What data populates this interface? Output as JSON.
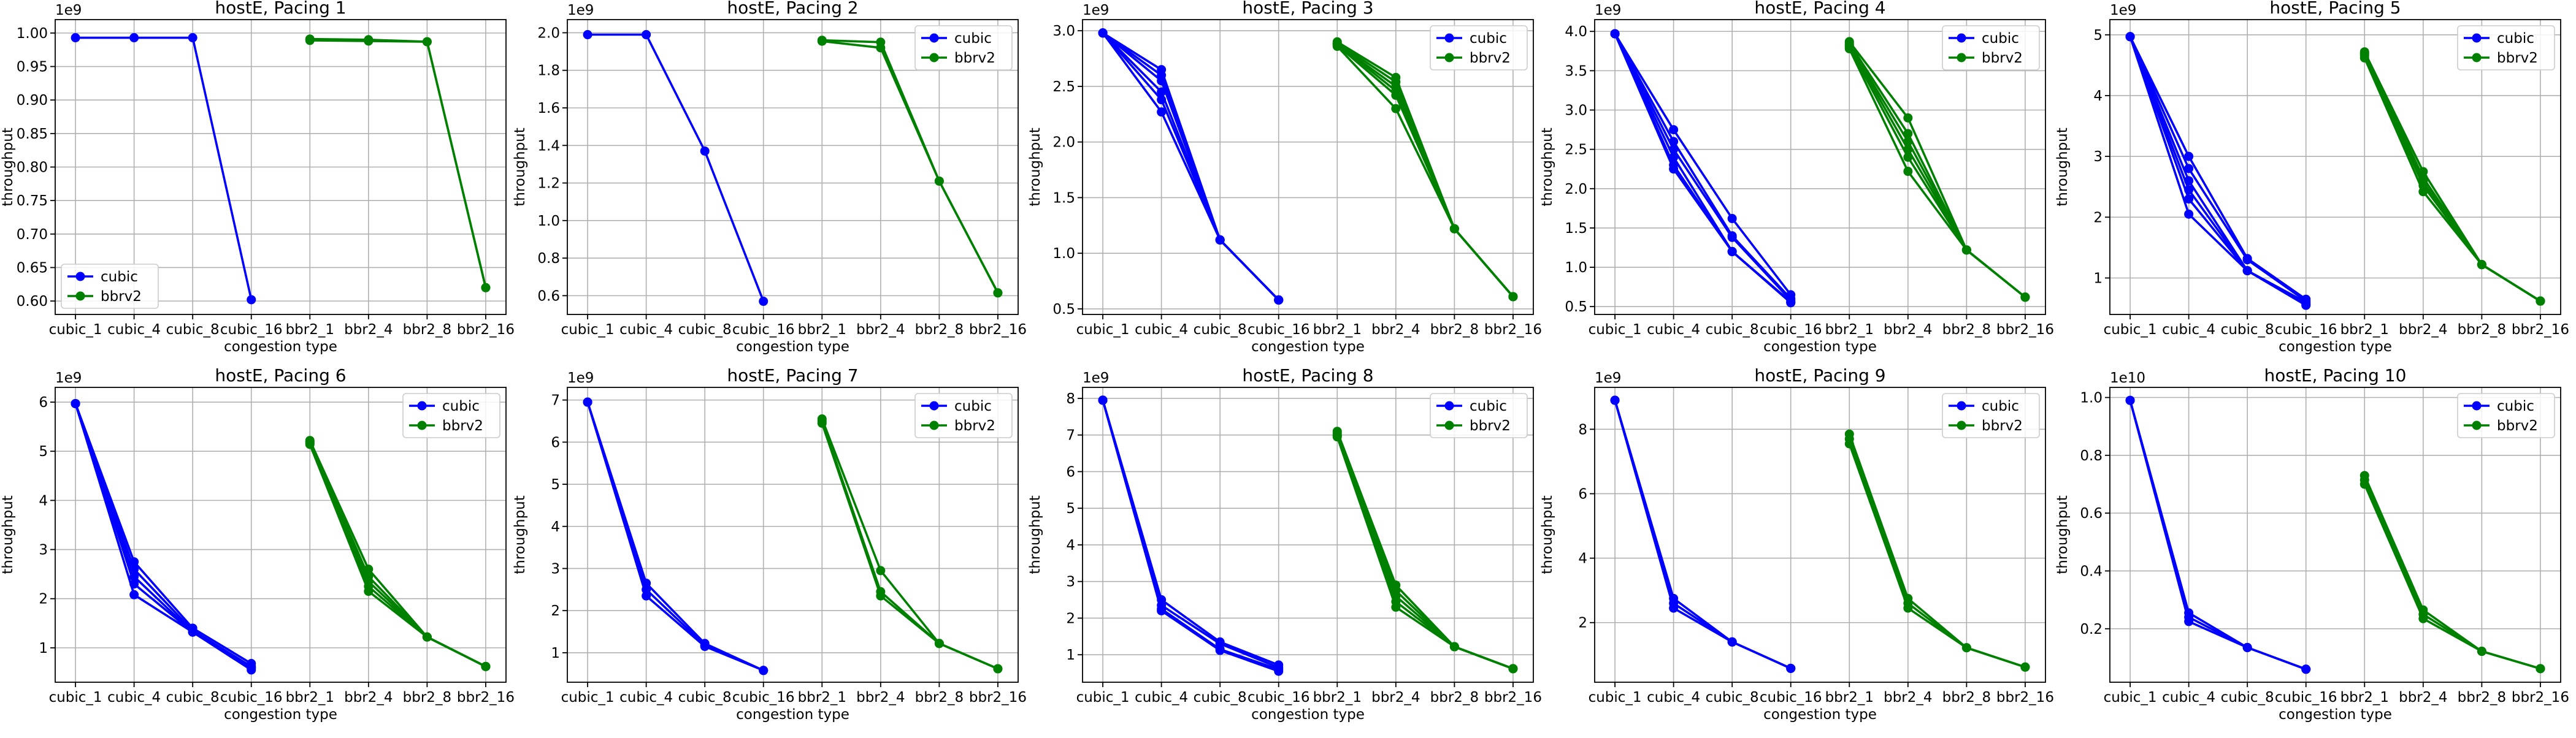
{
  "figure": {
    "axis_labels": {
      "x": "congestion type",
      "y": "throughput"
    }
  },
  "chart_data": [
    {
      "type": "line",
      "title": "hostE, Pacing 1",
      "xlabel": "congestion type",
      "ylabel": "throughput",
      "multiplier_label": "1e9",
      "multiplier": 1000000000,
      "categories": [
        "cubic_1",
        "cubic_4",
        "cubic_8",
        "cubic_16",
        "bbr2_1",
        "bbr2_4",
        "bbr2_8",
        "bbr2_16"
      ],
      "ylim": [
        0.58,
        1.02
      ],
      "yticks": [
        0.6,
        0.65,
        0.7,
        0.75,
        0.8,
        0.85,
        0.9,
        0.95,
        1.0
      ],
      "ytick_labels": [
        "0.60",
        "0.65",
        "0.70",
        "0.75",
        "0.80",
        "0.85",
        "0.90",
        "0.95",
        "1.00"
      ],
      "grid": true,
      "legend_position": "lower-left",
      "series": [
        {
          "name": "cubic",
          "color": "#0000ff",
          "runs": [
            [
              0.993,
              0.993,
              0.993,
              0.602
            ]
          ]
        },
        {
          "name": "bbrv2",
          "color": "#008000",
          "runs": [
            [
              0.991,
              0.99,
              0.987,
              0.62
            ],
            [
              0.989,
              0.988,
              0.987,
              0.62
            ]
          ]
        }
      ]
    },
    {
      "type": "line",
      "title": "hostE, Pacing 2",
      "xlabel": "congestion type",
      "ylabel": "throughput",
      "multiplier_label": "1e9",
      "multiplier": 1000000000,
      "categories": [
        "cubic_1",
        "cubic_4",
        "cubic_8",
        "cubic_16",
        "bbr2_1",
        "bbr2_4",
        "bbr2_8",
        "bbr2_16"
      ],
      "ylim": [
        0.5,
        2.07
      ],
      "yticks": [
        0.6,
        0.8,
        1.0,
        1.2,
        1.4,
        1.6,
        1.8,
        2.0
      ],
      "ytick_labels": [
        "0.6",
        "0.8",
        "1.0",
        "1.2",
        "1.4",
        "1.6",
        "1.8",
        "2.0"
      ],
      "grid": true,
      "legend_position": "upper-right",
      "series": [
        {
          "name": "cubic",
          "color": "#0000ff",
          "runs": [
            [
              1.99,
              1.99,
              1.37,
              0.57
            ]
          ]
        },
        {
          "name": "bbrv2",
          "color": "#008000",
          "runs": [
            [
              1.96,
              1.95,
              1.21,
              0.615
            ],
            [
              1.955,
              1.92,
              1.21,
              0.615
            ]
          ]
        }
      ]
    },
    {
      "type": "line",
      "title": "hostE, Pacing 3",
      "xlabel": "congestion type",
      "ylabel": "throughput",
      "multiplier_label": "1e9",
      "multiplier": 1000000000,
      "categories": [
        "cubic_1",
        "cubic_4",
        "cubic_8",
        "cubic_16",
        "bbr2_1",
        "bbr2_4",
        "bbr2_8",
        "bbr2_16"
      ],
      "ylim": [
        0.45,
        3.1
      ],
      "yticks": [
        0.5,
        1.0,
        1.5,
        2.0,
        2.5,
        3.0
      ],
      "ytick_labels": [
        "0.5",
        "1.0",
        "1.5",
        "2.0",
        "2.5",
        "3.0"
      ],
      "grid": true,
      "legend_position": "upper-right",
      "series": [
        {
          "name": "cubic",
          "color": "#0000ff",
          "runs": [
            [
              2.98,
              2.65,
              1.12,
              0.58
            ],
            [
              2.98,
              2.6,
              1.12,
              0.58
            ],
            [
              2.98,
              2.55,
              1.12,
              0.58
            ],
            [
              2.98,
              2.45,
              1.12,
              0.58
            ],
            [
              2.98,
              2.38,
              1.12,
              0.58
            ],
            [
              2.98,
              2.27,
              1.12,
              0.58
            ]
          ]
        },
        {
          "name": "bbrv2",
          "color": "#008000",
          "runs": [
            [
              2.9,
              2.58,
              1.22,
              0.61
            ],
            [
              2.89,
              2.54,
              1.22,
              0.61
            ],
            [
              2.88,
              2.5,
              1.22,
              0.61
            ],
            [
              2.88,
              2.46,
              1.22,
              0.61
            ],
            [
              2.87,
              2.42,
              1.22,
              0.61
            ],
            [
              2.86,
              2.3,
              1.22,
              0.61
            ]
          ]
        }
      ]
    },
    {
      "type": "line",
      "title": "hostE, Pacing 4",
      "xlabel": "congestion type",
      "ylabel": "throughput",
      "multiplier_label": "1e9",
      "multiplier": 1000000000,
      "categories": [
        "cubic_1",
        "cubic_4",
        "cubic_8",
        "cubic_16",
        "bbr2_1",
        "bbr2_4",
        "bbr2_8",
        "bbr2_16"
      ],
      "ylim": [
        0.4,
        4.15
      ],
      "yticks": [
        0.5,
        1.0,
        1.5,
        2.0,
        2.5,
        3.0,
        3.5,
        4.0
      ],
      "ytick_labels": [
        "0.5",
        "1.0",
        "1.5",
        "2.0",
        "2.5",
        "3.0",
        "3.5",
        "4.0"
      ],
      "grid": true,
      "legend_position": "upper-right",
      "series": [
        {
          "name": "cubic",
          "color": "#0000ff",
          "runs": [
            [
              3.97,
              2.75,
              1.62,
              0.65
            ],
            [
              3.97,
              2.6,
              1.4,
              0.6
            ],
            [
              3.97,
              2.5,
              1.38,
              0.58
            ],
            [
              3.97,
              2.4,
              1.2,
              0.56
            ],
            [
              3.97,
              2.3,
              1.2,
              0.55
            ],
            [
              3.97,
              2.25,
              1.2,
              0.55
            ]
          ]
        },
        {
          "name": "bbrv2",
          "color": "#008000",
          "runs": [
            [
              3.87,
              2.9,
              1.22,
              0.62
            ],
            [
              3.85,
              2.7,
              1.22,
              0.62
            ],
            [
              3.83,
              2.6,
              1.22,
              0.62
            ],
            [
              3.82,
              2.5,
              1.22,
              0.62
            ],
            [
              3.8,
              2.4,
              1.22,
              0.62
            ],
            [
              3.78,
              2.22,
              1.22,
              0.62
            ]
          ]
        }
      ]
    },
    {
      "type": "line",
      "title": "hostE, Pacing 5",
      "xlabel": "congestion type",
      "ylabel": "throughput",
      "multiplier_label": "1e9",
      "multiplier": 1000000000,
      "categories": [
        "cubic_1",
        "cubic_4",
        "cubic_8",
        "cubic_16",
        "bbr2_1",
        "bbr2_4",
        "bbr2_8",
        "bbr2_16"
      ],
      "ylim": [
        0.4,
        5.25
      ],
      "yticks": [
        1,
        2,
        3,
        4,
        5
      ],
      "ytick_labels": [
        "1",
        "2",
        "3",
        "4",
        "5"
      ],
      "grid": true,
      "legend_position": "upper-right",
      "series": [
        {
          "name": "cubic",
          "color": "#0000ff",
          "runs": [
            [
              4.97,
              3.0,
              1.32,
              0.65
            ],
            [
              4.97,
              2.8,
              1.3,
              0.62
            ],
            [
              4.97,
              2.6,
              1.12,
              0.6
            ],
            [
              4.97,
              2.45,
              1.12,
              0.58
            ],
            [
              4.97,
              2.3,
              1.12,
              0.56
            ],
            [
              4.97,
              2.05,
              1.12,
              0.55
            ]
          ]
        },
        {
          "name": "bbrv2",
          "color": "#008000",
          "runs": [
            [
              4.72,
              2.75,
              1.22,
              0.62
            ],
            [
              4.7,
              2.65,
              1.22,
              0.62
            ],
            [
              4.68,
              2.58,
              1.22,
              0.62
            ],
            [
              4.66,
              2.52,
              1.22,
              0.62
            ],
            [
              4.62,
              2.42,
              1.22,
              0.62
            ]
          ]
        }
      ]
    },
    {
      "type": "line",
      "title": "hostE, Pacing 6",
      "xlabel": "congestion type",
      "ylabel": "throughput",
      "multiplier_label": "1e9",
      "multiplier": 1000000000,
      "categories": [
        "cubic_1",
        "cubic_4",
        "cubic_8",
        "cubic_16",
        "bbr2_1",
        "bbr2_4",
        "bbr2_8",
        "bbr2_16"
      ],
      "ylim": [
        0.3,
        6.3
      ],
      "yticks": [
        1,
        2,
        3,
        4,
        5,
        6
      ],
      "ytick_labels": [
        "1",
        "2",
        "3",
        "4",
        "5",
        "6"
      ],
      "grid": true,
      "legend_position": "upper-right",
      "series": [
        {
          "name": "cubic",
          "color": "#0000ff",
          "runs": [
            [
              5.97,
              2.75,
              1.4,
              0.68
            ],
            [
              5.97,
              2.6,
              1.35,
              0.62
            ],
            [
              5.97,
              2.45,
              1.32,
              0.6
            ],
            [
              5.97,
              2.3,
              1.32,
              0.58
            ],
            [
              5.97,
              2.08,
              1.32,
              0.55
            ]
          ]
        },
        {
          "name": "bbrv2",
          "color": "#008000",
          "runs": [
            [
              5.22,
              2.6,
              1.22,
              0.62
            ],
            [
              5.2,
              2.45,
              1.22,
              0.62
            ],
            [
              5.18,
              2.35,
              1.22,
              0.62
            ],
            [
              5.16,
              2.25,
              1.22,
              0.62
            ],
            [
              5.14,
              2.15,
              1.22,
              0.62
            ]
          ]
        }
      ]
    },
    {
      "type": "line",
      "title": "hostE, Pacing 7",
      "xlabel": "congestion type",
      "ylabel": "throughput",
      "multiplier_label": "1e9",
      "multiplier": 1000000000,
      "categories": [
        "cubic_1",
        "cubic_4",
        "cubic_8",
        "cubic_16",
        "bbr2_1",
        "bbr2_4",
        "bbr2_8",
        "bbr2_16"
      ],
      "ylim": [
        0.3,
        7.3
      ],
      "yticks": [
        1,
        2,
        3,
        4,
        5,
        6,
        7
      ],
      "ytick_labels": [
        "1",
        "2",
        "3",
        "4",
        "5",
        "6",
        "7"
      ],
      "grid": true,
      "legend_position": "upper-right",
      "series": [
        {
          "name": "cubic",
          "color": "#0000ff",
          "runs": [
            [
              6.95,
              2.65,
              1.22,
              0.58
            ],
            [
              6.95,
              2.5,
              1.18,
              0.58
            ],
            [
              6.95,
              2.35,
              1.15,
              0.58
            ]
          ]
        },
        {
          "name": "bbrv2",
          "color": "#008000",
          "runs": [
            [
              6.55,
              2.95,
              1.22,
              0.62
            ],
            [
              6.5,
              2.45,
              1.22,
              0.62
            ],
            [
              6.45,
              2.35,
              1.22,
              0.62
            ]
          ]
        }
      ]
    },
    {
      "type": "line",
      "title": "hostE, Pacing 8",
      "xlabel": "congestion type",
      "ylabel": "throughput",
      "multiplier_label": "1e9",
      "multiplier": 1000000000,
      "categories": [
        "cubic_1",
        "cubic_4",
        "cubic_8",
        "cubic_16",
        "bbr2_1",
        "bbr2_4",
        "bbr2_8",
        "bbr2_16"
      ],
      "ylim": [
        0.25,
        8.3
      ],
      "yticks": [
        1,
        2,
        3,
        4,
        5,
        6,
        7,
        8
      ],
      "ytick_labels": [
        "1",
        "2",
        "3",
        "4",
        "5",
        "6",
        "7",
        "8"
      ],
      "grid": true,
      "legend_position": "upper-right",
      "series": [
        {
          "name": "cubic",
          "color": "#0000ff",
          "runs": [
            [
              7.95,
              2.5,
              1.35,
              0.72
            ],
            [
              7.95,
              2.35,
              1.3,
              0.65
            ],
            [
              7.95,
              2.25,
              1.15,
              0.6
            ],
            [
              7.95,
              2.2,
              1.12,
              0.55
            ]
          ]
        },
        {
          "name": "bbrv2",
          "color": "#008000",
          "runs": [
            [
              7.1,
              2.9,
              1.22,
              0.62
            ],
            [
              7.05,
              2.75,
              1.22,
              0.62
            ],
            [
              7.0,
              2.6,
              1.22,
              0.62
            ],
            [
              6.98,
              2.45,
              1.22,
              0.62
            ],
            [
              6.95,
              2.3,
              1.22,
              0.62
            ]
          ]
        }
      ]
    },
    {
      "type": "line",
      "title": "hostE, Pacing 9",
      "xlabel": "congestion type",
      "ylabel": "throughput",
      "multiplier_label": "1e9",
      "multiplier": 1000000000,
      "categories": [
        "cubic_1",
        "cubic_4",
        "cubic_8",
        "cubic_16",
        "bbr2_1",
        "bbr2_4",
        "bbr2_8",
        "bbr2_16"
      ],
      "ylim": [
        0.15,
        9.3
      ],
      "yticks": [
        2,
        4,
        6,
        8
      ],
      "ytick_labels": [
        "2",
        "4",
        "6",
        "8"
      ],
      "grid": true,
      "legend_position": "upper-right",
      "series": [
        {
          "name": "cubic",
          "color": "#0000ff",
          "runs": [
            [
              8.9,
              2.75,
              1.4,
              0.58
            ],
            [
              8.9,
              2.6,
              1.4,
              0.58
            ],
            [
              8.9,
              2.45,
              1.4,
              0.58
            ]
          ]
        },
        {
          "name": "bbrv2",
          "color": "#008000",
          "runs": [
            [
              7.85,
              2.75,
              1.22,
              0.62
            ],
            [
              7.7,
              2.6,
              1.22,
              0.62
            ],
            [
              7.55,
              2.45,
              1.22,
              0.62
            ]
          ]
        }
      ]
    },
    {
      "type": "line",
      "title": "hostE, Pacing 10",
      "xlabel": "congestion type",
      "ylabel": "throughput",
      "multiplier_label": "1e10",
      "multiplier": 10000000000,
      "categories": [
        "cubic_1",
        "cubic_4",
        "cubic_8",
        "cubic_16",
        "bbr2_1",
        "bbr2_4",
        "bbr2_8",
        "bbr2_16"
      ],
      "ylim": [
        0.015,
        1.035
      ],
      "yticks": [
        0.2,
        0.4,
        0.6,
        0.8,
        1.0
      ],
      "ytick_labels": [
        "0.2",
        "0.4",
        "0.6",
        "0.8",
        "1.0"
      ],
      "grid": true,
      "legend_position": "upper-right",
      "series": [
        {
          "name": "cubic",
          "color": "#0000ff",
          "runs": [
            [
              0.99,
              0.255,
              0.135,
              0.06
            ],
            [
              0.99,
              0.24,
              0.135,
              0.06
            ],
            [
              0.99,
              0.225,
              0.135,
              0.06
            ]
          ]
        },
        {
          "name": "bbrv2",
          "color": "#008000",
          "runs": [
            [
              0.73,
              0.265,
              0.122,
              0.062
            ],
            [
              0.715,
              0.25,
              0.122,
              0.062
            ],
            [
              0.7,
              0.235,
              0.122,
              0.062
            ]
          ]
        }
      ]
    }
  ]
}
